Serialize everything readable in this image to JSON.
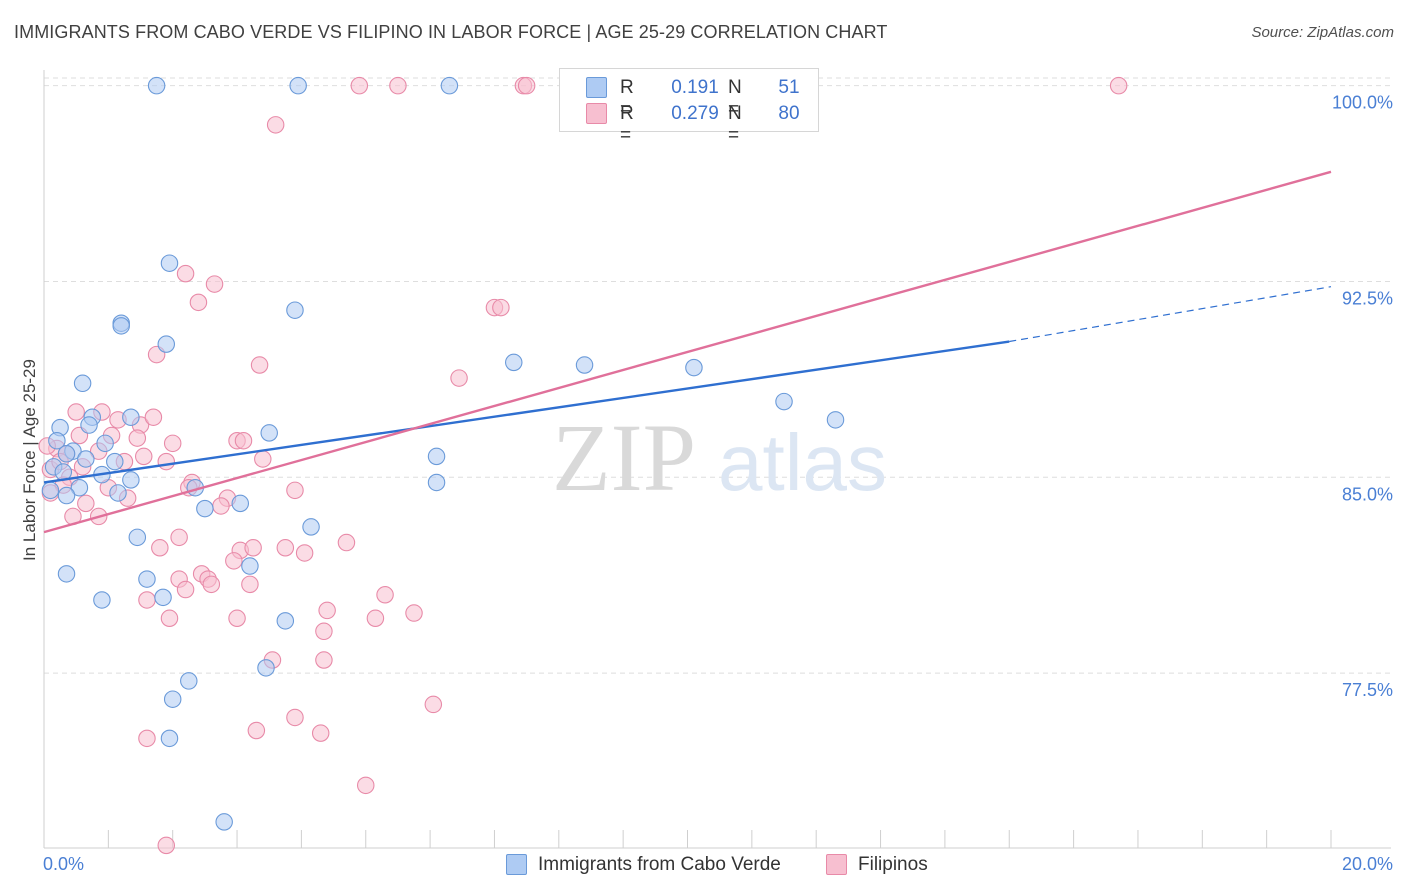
{
  "chart": {
    "title": "IMMIGRANTS FROM CABO VERDE VS FILIPINO IN LABOR FORCE | AGE 25-29 CORRELATION CHART",
    "source": "Source: ZipAtlas.com",
    "y_axis_label": "In Labor Force | Age 25-29",
    "watermark_zip": "ZIP",
    "watermark_atlas": "atlas"
  },
  "colors": {
    "blue_fill": "#aecbf3",
    "blue_stroke": "#6a9ad9",
    "blue_line": "#2f6fd0",
    "pink_fill": "#f7bfd0",
    "pink_stroke": "#e88aa8",
    "pink_line": "#e0709a",
    "tick_text": "#4a7fd4",
    "grid": "#dedede"
  },
  "legend": {
    "rows": [
      {
        "r_label": "R =",
        "r_value": "0.191",
        "n_label": "N =",
        "n_value": "51"
      },
      {
        "r_label": "R =",
        "r_value": "0.279",
        "n_label": "N =",
        "n_value": "80"
      }
    ]
  },
  "bottom_legend": {
    "series1": "Immigrants from Cabo Verde",
    "series2": "Filipinos"
  },
  "chart_data": {
    "type": "scatter",
    "title": "IMMIGRANTS FROM CABO VERDE VS FILIPINO IN LABOR FORCE | AGE 25-29 CORRELATION CHART",
    "xlabel": "",
    "ylabel": "In Labor Force | Age 25-29",
    "xlim": [
      0,
      20
    ],
    "ylim": [
      70.8,
      100.6
    ],
    "x_tick_labels": [
      {
        "value": 0,
        "label": "0.0%"
      },
      {
        "value": 20,
        "label": "20.0%"
      }
    ],
    "y_tick_labels": [
      {
        "value": 100,
        "label": "100.0%"
      },
      {
        "value": 92.5,
        "label": "92.5%"
      },
      {
        "value": 85,
        "label": "85.0%"
      },
      {
        "value": 77.5,
        "label": "77.5%"
      }
    ],
    "grid": true,
    "series": [
      {
        "name": "Immigrants from Cabo Verde",
        "r": 0.191,
        "n": 51,
        "trend": {
          "x0": 0,
          "y0": 84.8,
          "x1": 15,
          "y1": 90.2,
          "dashed_to_x": 20,
          "dashed_to_y": 92.3
        },
        "points": [
          [
            1.75,
            100.0
          ],
          [
            3.95,
            100.0
          ],
          [
            6.3,
            100.0
          ],
          [
            1.95,
            93.2
          ],
          [
            1.2,
            90.9
          ],
          [
            1.2,
            90.8
          ],
          [
            1.9,
            90.1
          ],
          [
            3.9,
            91.4
          ],
          [
            7.3,
            89.4
          ],
          [
            8.4,
            89.3
          ],
          [
            10.1,
            89.2
          ],
          [
            11.5,
            87.9
          ],
          [
            12.3,
            87.2
          ],
          [
            0.6,
            88.6
          ],
          [
            0.75,
            87.3
          ],
          [
            0.7,
            87.0
          ],
          [
            0.25,
            86.9
          ],
          [
            0.2,
            86.4
          ],
          [
            0.95,
            86.3
          ],
          [
            1.35,
            87.3
          ],
          [
            3.5,
            86.7
          ],
          [
            0.45,
            86.0
          ],
          [
            0.35,
            85.9
          ],
          [
            0.65,
            85.7
          ],
          [
            1.1,
            85.6
          ],
          [
            0.15,
            85.4
          ],
          [
            0.9,
            85.1
          ],
          [
            1.35,
            84.9
          ],
          [
            0.55,
            84.6
          ],
          [
            1.15,
            84.4
          ],
          [
            0.35,
            84.3
          ],
          [
            2.35,
            84.6
          ],
          [
            6.1,
            85.8
          ],
          [
            6.1,
            84.8
          ],
          [
            2.5,
            83.8
          ],
          [
            3.05,
            84.0
          ],
          [
            4.15,
            83.1
          ],
          [
            1.45,
            82.7
          ],
          [
            3.2,
            81.6
          ],
          [
            0.35,
            81.3
          ],
          [
            1.6,
            81.1
          ],
          [
            0.9,
            80.3
          ],
          [
            1.85,
            80.4
          ],
          [
            3.75,
            79.5
          ],
          [
            3.45,
            77.7
          ],
          [
            2.25,
            77.2
          ],
          [
            2.0,
            76.5
          ],
          [
            1.95,
            75.0
          ],
          [
            2.8,
            71.8
          ],
          [
            0.1,
            84.5
          ],
          [
            0.3,
            85.2
          ]
        ]
      },
      {
        "name": "Filipinos",
        "r": 0.279,
        "n": 80,
        "trend": {
          "x0": 0,
          "y0": 82.9,
          "x1": 20,
          "y1": 96.7
        },
        "points": [
          [
            4.9,
            100.0
          ],
          [
            5.5,
            100.0
          ],
          [
            7.45,
            100.0
          ],
          [
            7.5,
            100.0
          ],
          [
            16.7,
            100.0
          ],
          [
            3.6,
            98.5
          ],
          [
            2.2,
            92.8
          ],
          [
            2.65,
            92.4
          ],
          [
            2.4,
            91.7
          ],
          [
            7.0,
            91.5
          ],
          [
            7.1,
            91.5
          ],
          [
            1.75,
            89.7
          ],
          [
            3.35,
            89.3
          ],
          [
            6.45,
            88.8
          ],
          [
            0.5,
            87.5
          ],
          [
            0.9,
            87.5
          ],
          [
            1.15,
            87.2
          ],
          [
            1.5,
            87.0
          ],
          [
            1.7,
            87.3
          ],
          [
            1.45,
            86.5
          ],
          [
            2.0,
            86.3
          ],
          [
            3.0,
            86.4
          ],
          [
            3.1,
            86.4
          ],
          [
            0.2,
            86.1
          ],
          [
            0.35,
            85.9
          ],
          [
            0.85,
            86.0
          ],
          [
            1.25,
            85.6
          ],
          [
            1.55,
            85.8
          ],
          [
            3.4,
            85.7
          ],
          [
            0.1,
            85.3
          ],
          [
            0.4,
            85.0
          ],
          [
            0.6,
            85.4
          ],
          [
            0.3,
            84.7
          ],
          [
            1.0,
            84.6
          ],
          [
            2.3,
            84.8
          ],
          [
            2.25,
            84.6
          ],
          [
            0.65,
            84.0
          ],
          [
            1.3,
            84.2
          ],
          [
            2.85,
            84.2
          ],
          [
            2.75,
            83.9
          ],
          [
            0.85,
            83.5
          ],
          [
            2.1,
            82.7
          ],
          [
            1.8,
            82.3
          ],
          [
            3.05,
            82.2
          ],
          [
            3.25,
            82.3
          ],
          [
            3.75,
            82.3
          ],
          [
            4.05,
            82.1
          ],
          [
            4.7,
            82.5
          ],
          [
            2.1,
            81.1
          ],
          [
            2.45,
            81.3
          ],
          [
            2.55,
            81.1
          ],
          [
            2.6,
            80.9
          ],
          [
            3.2,
            80.9
          ],
          [
            1.6,
            80.3
          ],
          [
            5.3,
            80.5
          ],
          [
            4.4,
            79.9
          ],
          [
            5.75,
            79.8
          ],
          [
            1.95,
            79.6
          ],
          [
            3.0,
            79.6
          ],
          [
            4.35,
            79.1
          ],
          [
            5.15,
            79.6
          ],
          [
            3.55,
            78.0
          ],
          [
            4.35,
            78.0
          ],
          [
            6.05,
            76.3
          ],
          [
            3.9,
            75.8
          ],
          [
            3.3,
            75.3
          ],
          [
            4.3,
            75.2
          ],
          [
            1.6,
            75.0
          ],
          [
            5.0,
            73.2
          ],
          [
            1.9,
            70.9
          ],
          [
            0.1,
            84.4
          ],
          [
            0.25,
            85.6
          ],
          [
            0.55,
            86.6
          ],
          [
            1.05,
            86.6
          ],
          [
            1.9,
            85.6
          ],
          [
            2.95,
            81.8
          ],
          [
            0.05,
            86.2
          ],
          [
            0.45,
            83.5
          ],
          [
            2.2,
            80.7
          ],
          [
            3.9,
            84.5
          ]
        ]
      }
    ]
  }
}
